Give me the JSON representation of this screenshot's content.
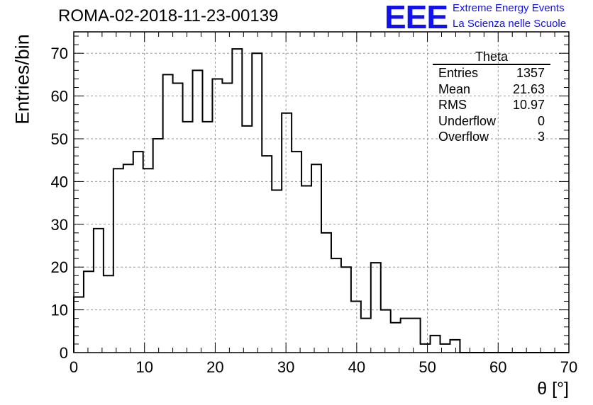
{
  "title": "ROMA-02-2018-11-23-00139",
  "logo": {
    "mark": "EEE",
    "line1": "Extreme Energy Events",
    "line2": "La Scienza nelle Scuole",
    "color": "#1111ee"
  },
  "stats_box": {
    "title": "Theta",
    "rows": [
      {
        "label": "Entries",
        "value": "1357"
      },
      {
        "label": "Mean",
        "value": "21.63"
      },
      {
        "label": "RMS",
        "value": "10.97"
      },
      {
        "label": "Underflow",
        "value": "0"
      },
      {
        "label": "Overflow",
        "value": "3"
      }
    ]
  },
  "chart_data": {
    "type": "histogram",
    "title": "ROMA-02-2018-11-23-00139",
    "xlabel": "θ [°]",
    "ylabel": "Entries/bin",
    "xlim": [
      0,
      70
    ],
    "ylim": [
      0,
      75
    ],
    "grid": true,
    "bin_width": 1.4,
    "x_ticks": [
      0,
      10,
      20,
      30,
      40,
      50,
      60,
      70
    ],
    "y_ticks": [
      0,
      10,
      20,
      30,
      40,
      50,
      60,
      70
    ],
    "counts": [
      13,
      19,
      29,
      18,
      43,
      44,
      47,
      43,
      50,
      65,
      63,
      54,
      66,
      54,
      64,
      63,
      71,
      53,
      70,
      46,
      38,
      56,
      47,
      39,
      44,
      28,
      22,
      20,
      12,
      8,
      21,
      10,
      7,
      8,
      8,
      2,
      4,
      2,
      3,
      0,
      0,
      0,
      0,
      0,
      0,
      0,
      0,
      0,
      0,
      0
    ],
    "line_color": "#000000"
  }
}
